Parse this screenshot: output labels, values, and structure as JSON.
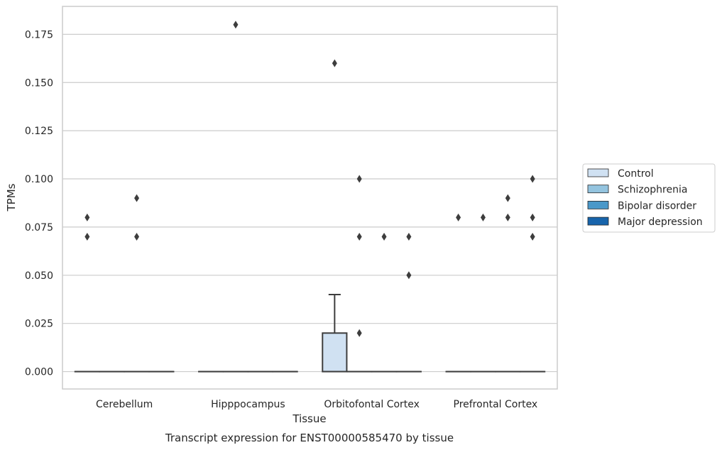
{
  "chart_data": {
    "type": "box",
    "title": "",
    "caption": "Transcript expression for ENST00000585470 by tissue",
    "xlabel": "Tissue",
    "ylabel": "TPMs",
    "categories": [
      "Cerebellum",
      "Hipppocampus",
      "Orbitofontal Cortex",
      "Prefrontal Cortex"
    ],
    "ylim": [
      -0.009,
      0.1895
    ],
    "yticks": [
      "0.000",
      "0.025",
      "0.050",
      "0.075",
      "0.100",
      "0.125",
      "0.150",
      "0.175"
    ],
    "grid": true,
    "legend_position": "right",
    "series": [
      {
        "name": "Control",
        "color": "#d0e1f2",
        "boxes": [
          {
            "category": "Cerebellum",
            "q1": 0,
            "median": 0,
            "q3": 0,
            "whislo": 0,
            "whishi": 0,
            "fliers": [
              0.07,
              0.08
            ]
          },
          {
            "category": "Hipppocampus",
            "q1": 0,
            "median": 0,
            "q3": 0,
            "whislo": 0,
            "whishi": 0,
            "fliers": []
          },
          {
            "category": "Orbitofontal Cortex",
            "q1": 0,
            "median": 0,
            "q3": 0.02,
            "whislo": 0,
            "whishi": 0.04,
            "fliers": [
              0.16
            ]
          },
          {
            "category": "Prefrontal Cortex",
            "q1": 0,
            "median": 0,
            "q3": 0,
            "whislo": 0,
            "whishi": 0,
            "fliers": [
              0.08
            ]
          }
        ]
      },
      {
        "name": "Schizophrenia",
        "color": "#94c4df",
        "boxes": [
          {
            "category": "Cerebellum",
            "q1": 0,
            "median": 0,
            "q3": 0,
            "whislo": 0,
            "whishi": 0,
            "fliers": []
          },
          {
            "category": "Hipppocampus",
            "q1": 0,
            "median": 0,
            "q3": 0,
            "whislo": 0,
            "whishi": 0,
            "fliers": [
              0.18
            ]
          },
          {
            "category": "Orbitofontal Cortex",
            "q1": 0,
            "median": 0,
            "q3": 0,
            "whislo": 0,
            "whishi": 0,
            "fliers": [
              0.02,
              0.07,
              0.1
            ]
          },
          {
            "category": "Prefrontal Cortex",
            "q1": 0,
            "median": 0,
            "q3": 0,
            "whislo": 0,
            "whishi": 0,
            "fliers": [
              0.08
            ]
          }
        ]
      },
      {
        "name": "Bipolar disorder",
        "color": "#4a98c9",
        "boxes": [
          {
            "category": "Cerebellum",
            "q1": 0,
            "median": 0,
            "q3": 0,
            "whislo": 0,
            "whishi": 0,
            "fliers": [
              0.07,
              0.09
            ]
          },
          {
            "category": "Hipppocampus",
            "q1": 0,
            "median": 0,
            "q3": 0,
            "whislo": 0,
            "whishi": 0,
            "fliers": []
          },
          {
            "category": "Orbitofontal Cortex",
            "q1": 0,
            "median": 0,
            "q3": 0,
            "whislo": 0,
            "whishi": 0,
            "fliers": [
              0.07
            ]
          },
          {
            "category": "Prefrontal Cortex",
            "q1": 0,
            "median": 0,
            "q3": 0,
            "whislo": 0,
            "whishi": 0,
            "fliers": [
              0.08,
              0.09
            ]
          }
        ]
      },
      {
        "name": "Major depression",
        "color": "#1764ab",
        "boxes": [
          {
            "category": "Cerebellum",
            "q1": 0,
            "median": 0,
            "q3": 0,
            "whislo": 0,
            "whishi": 0,
            "fliers": []
          },
          {
            "category": "Hipppocampus",
            "q1": 0,
            "median": 0,
            "q3": 0,
            "whislo": 0,
            "whishi": 0,
            "fliers": []
          },
          {
            "category": "Orbitofontal Cortex",
            "q1": 0,
            "median": 0,
            "q3": 0,
            "whislo": 0,
            "whishi": 0,
            "fliers": [
              0.05,
              0.07
            ]
          },
          {
            "category": "Prefrontal Cortex",
            "q1": 0,
            "median": 0,
            "q3": 0,
            "whislo": 0,
            "whishi": 0,
            "fliers": [
              0.07,
              0.08,
              0.1
            ]
          }
        ]
      }
    ]
  }
}
